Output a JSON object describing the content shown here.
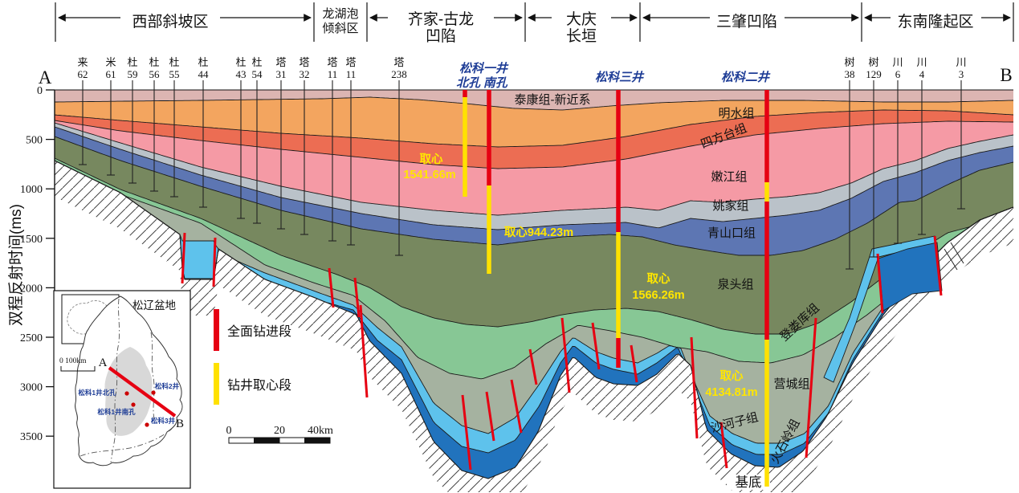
{
  "colors": {
    "taikang": "#dcb5b2",
    "mingshui": "#f3a55f",
    "sifangtai": "#ec6d53",
    "nenjiang": "#f59aa5",
    "yaojia": "#bac2c9",
    "qingshankou": "#5d76b3",
    "quantou": "#77885f",
    "denglouku": "#87c795",
    "yingcheng": "#a5b2a0",
    "shahezi": "#5ec2ec",
    "huoshiling": "#2173bd",
    "fault": "#e60012",
    "drill_red": "#e60012",
    "drill_yellow": "#ffe100",
    "core_label": "#ffe600",
    "sk_label": "#1e3d96",
    "hatch": "#444444"
  },
  "axis": {
    "label": "双程反射时间(ms)",
    "ticks": [
      "0",
      "500",
      "1000",
      "1500",
      "2000",
      "2500",
      "3000",
      "3500"
    ]
  },
  "endpoints": {
    "left": "A",
    "right": "B"
  },
  "zones": [
    {
      "line1": "西部斜坡区",
      "line2": ""
    },
    {
      "line1": "龙湖泡",
      "line2": "倾斜区"
    },
    {
      "line1": "齐家-古龙",
      "line2": "凹陷"
    },
    {
      "line1": "大庆",
      "line2": "长垣"
    },
    {
      "line1": "三肇凹陷",
      "line2": ""
    },
    {
      "line1": "东南隆起区",
      "line2": ""
    }
  ],
  "wells_west": [
    {
      "name": "来",
      "num": "62"
    },
    {
      "name": "米",
      "num": "61"
    },
    {
      "name": "杜",
      "num": "59"
    },
    {
      "name": "杜",
      "num": "56"
    },
    {
      "name": "杜",
      "num": "55"
    },
    {
      "name": "杜",
      "num": "44"
    },
    {
      "name": "杜",
      "num": "43"
    },
    {
      "name": "杜",
      "num": "54"
    },
    {
      "name": "塔",
      "num": "31"
    },
    {
      "name": "塔",
      "num": "32"
    },
    {
      "name": "塔",
      "num": "11"
    },
    {
      "name": "塔",
      "num": "11"
    },
    {
      "name": "塔",
      "num": "238"
    }
  ],
  "wells_east": [
    {
      "name": "树",
      "num": "38"
    },
    {
      "name": "树",
      "num": "129"
    },
    {
      "name": "川",
      "num": "6"
    },
    {
      "name": "川",
      "num": "4"
    },
    {
      "name": "川",
      "num": "3"
    }
  ],
  "sk_wells": {
    "sk1_line1": "松科一井",
    "sk1_line2": "北孔 南孔",
    "sk3": "松科三井",
    "sk2": "松科二井"
  },
  "core_labels": {
    "c1_line1": "取心",
    "c1_line2": "1541.66m",
    "c2": "取心944.23m",
    "c3_line1": "取心",
    "c3_line2": "1566.26m",
    "c4_line1": "取心",
    "c4_line2": "4134.81m"
  },
  "formations": {
    "taikang": "泰康组-新近系",
    "mingshui": "明水组",
    "sifangtai": "四方台组",
    "nenjiang": "嫩江组",
    "yaojia": "姚家组",
    "qingshankou": "青山口组",
    "quantou": "泉头组",
    "denglouku": "登娄库组",
    "yingcheng": "营城组",
    "shahezi": "沙河子组",
    "huoshiling": "火石岭组",
    "jidi": "基底"
  },
  "legend": {
    "full_drill": "全面钻进段",
    "core_drill": "钻井取心段"
  },
  "scale_bar": {
    "t0": "0",
    "t20": "20",
    "t40": "40km"
  },
  "inset": {
    "title": "松辽盆地",
    "scale": "0  100km",
    "a": "A",
    "b": "B",
    "well1": "松科1井北孔",
    "well2": "松科2井",
    "well3": "松科1井南孔",
    "well4": "松科3井"
  }
}
